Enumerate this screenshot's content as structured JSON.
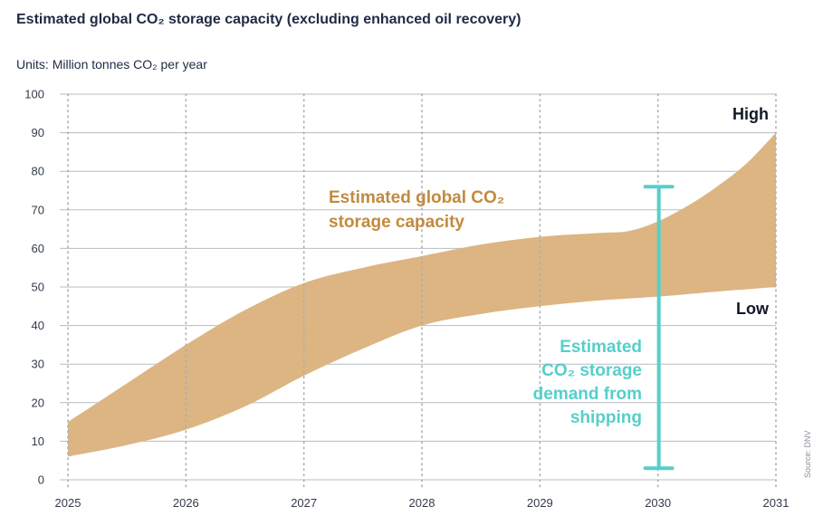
{
  "header": {
    "title": "Estimated global CO₂ storage capacity (excluding enhanced oil recovery)",
    "units_prefix": "Units: ",
    "units_value": "Million tonnes CO₂ per year"
  },
  "source": "Source: DNV",
  "colors": {
    "band": "#dcb583",
    "demand": "#56cfc9",
    "capacity_text": "#c28a3f",
    "grid": "#b7bcc4"
  },
  "chart_data": {
    "type": "area",
    "title": "Estimated global CO₂ storage capacity (excluding enhanced oil recovery)",
    "ylabel": "Million tonnes CO₂ per year",
    "xlim": [
      2025,
      2031
    ],
    "ylim": [
      0,
      100
    ],
    "x_ticks": [
      2025,
      2026,
      2027,
      2028,
      2029,
      2030,
      2031
    ],
    "y_ticks": [
      0,
      10,
      20,
      30,
      40,
      50,
      60,
      70,
      80,
      90,
      100
    ],
    "series": [
      {
        "name": "High",
        "x": [
          2025,
          2025.5,
          2026,
          2026.5,
          2027,
          2027.5,
          2028,
          2028.5,
          2029,
          2029.5,
          2029.75,
          2030,
          2030.25,
          2030.5,
          2030.75,
          2031
        ],
        "values": [
          15,
          25,
          35,
          44,
          51,
          55,
          58,
          61,
          63,
          64,
          64.5,
          67,
          71,
          76,
          82,
          90
        ]
      },
      {
        "name": "Low",
        "x": [
          2025,
          2025.5,
          2026,
          2026.5,
          2027,
          2027.5,
          2028,
          2028.5,
          2029,
          2029.5,
          2030,
          2030.5,
          2031
        ],
        "values": [
          6,
          9,
          13,
          19,
          27,
          34,
          40,
          43,
          45,
          46.5,
          47.5,
          48.8,
          50
        ]
      }
    ],
    "band_label": [
      "Estimated global CO₂",
      "storage capacity"
    ],
    "edge_labels": {
      "high": "High",
      "low": "Low"
    },
    "demand": {
      "name": "Estimated CO₂ storage demand from shipping",
      "label_lines": [
        "Estimated",
        "CO₂ storage",
        "demand from",
        "shipping"
      ],
      "x": 2030,
      "low": 3,
      "high": 76
    }
  }
}
